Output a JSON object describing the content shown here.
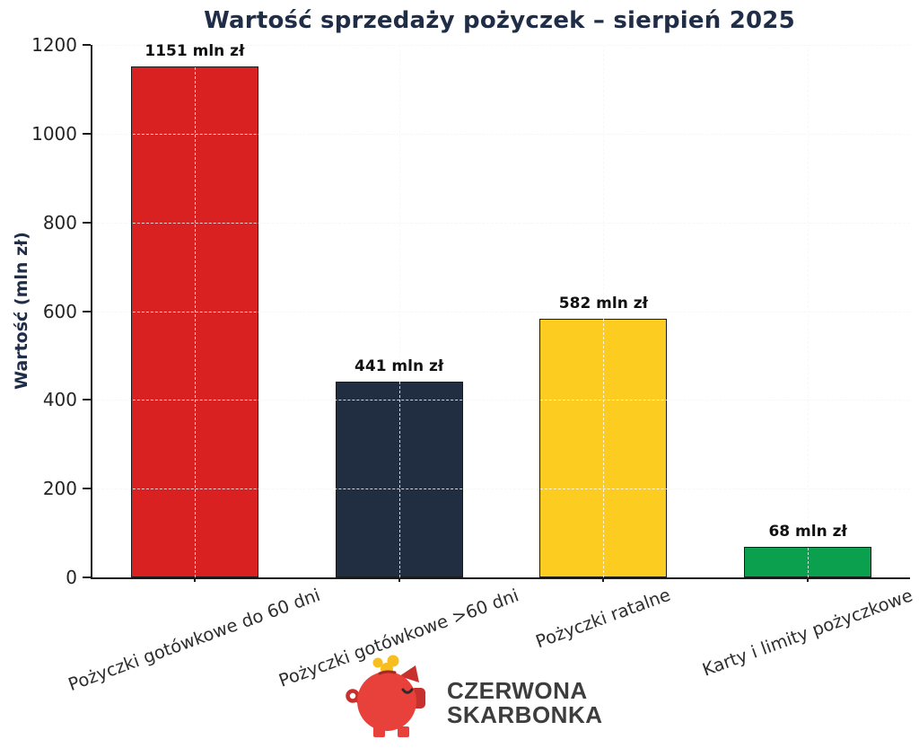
{
  "chart_data": {
    "type": "bar",
    "title": "Wartość sprzedaży pożyczek – sierpień 2025",
    "ylabel": "Wartość (mln zł)",
    "xlabel": "",
    "ylim": [
      0,
      1200
    ],
    "yticks": [
      0,
      200,
      400,
      600,
      800,
      1000,
      1200
    ],
    "grid": "dashed",
    "legend_position": "none",
    "categories": [
      "Pożyczki gotówkowe do 60 dni",
      "Pożyczki gotówkowe >60 dni",
      "Pożyczki ratalne",
      "Karty i limity pożyczkowe"
    ],
    "values": [
      1151,
      441,
      582,
      68
    ],
    "value_labels": [
      "1151 mln zł",
      "441 mln zł",
      "582 mln zł",
      "68 mln zł"
    ],
    "value_label_suffix": " mln zł",
    "bar_colors": [
      "#d92121",
      "#212e42",
      "#fccd20",
      "#0aa04d"
    ]
  },
  "branding": {
    "logo_icon": "piggy-bank-icon",
    "logo_line1": "CZERWONA",
    "logo_line2": "SKARBONKA",
    "pig_body_color": "#e8403a",
    "pig_dark_color": "#c8302e",
    "pig_slot_color": "#a82724",
    "coin_color": "#f6be1e",
    "eye_color": "#2b2b2b",
    "logo_text_color": "#3d3d3d"
  },
  "style": {
    "title_color": "#1f2d47",
    "axis_color": "#1b1b1b",
    "grid_color": "#d9d9d9",
    "grid_overlay_color": "rgba(255,255,255,0.8)",
    "ytick_label_color": "#242424",
    "category_label_color": "#2e2e2e",
    "value_label_color": "#111111",
    "background_color": "#ffffff"
  }
}
